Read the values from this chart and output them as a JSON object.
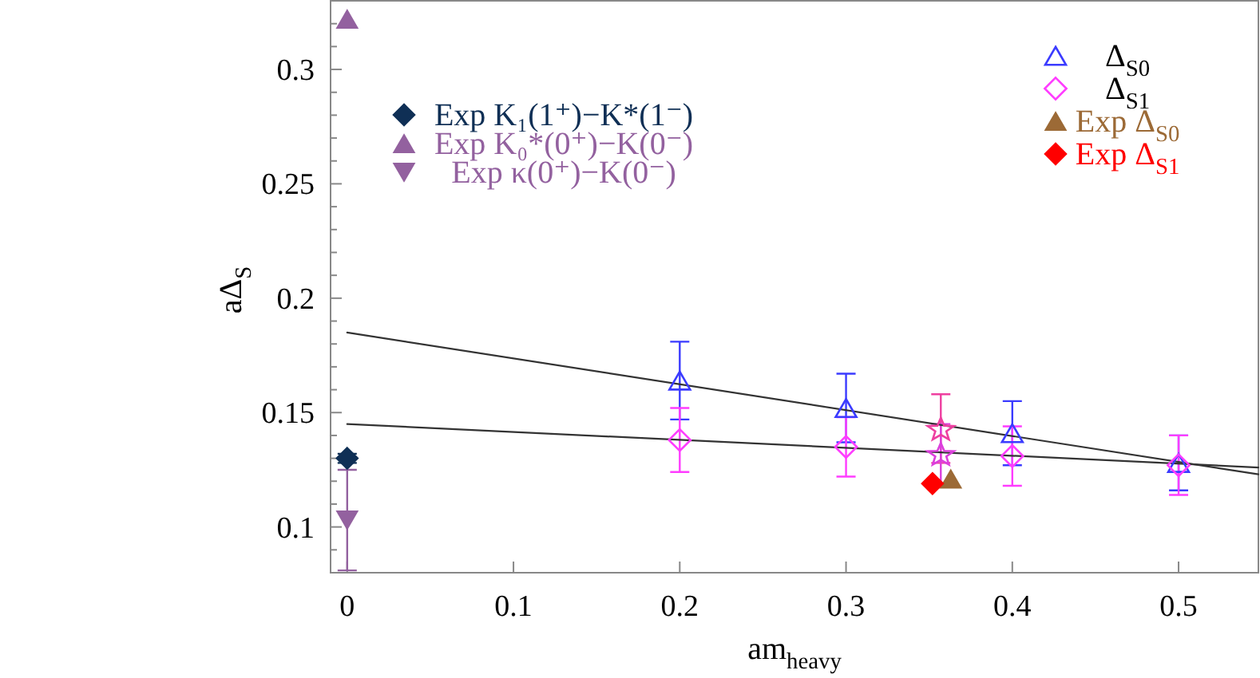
{
  "chart_data": {
    "type": "scatter",
    "xlabel": "am$_{heavy}$",
    "ylabel": "aΔ$_{S}$",
    "xlim": [
      -0.01,
      0.548
    ],
    "ylim": [
      0.08,
      0.33
    ],
    "xticks": [
      0,
      0.1,
      0.2,
      0.3,
      0.4,
      0.5
    ],
    "yticks": [
      {
        "value": 0.09,
        "label": null
      },
      0.1,
      {
        "value": 0.11,
        "label": null
      },
      {
        "value": 0.12,
        "label": null
      },
      {
        "value": 0.13,
        "label": null
      },
      {
        "value": 0.14,
        "label": null
      },
      0.15,
      {
        "value": 0.16,
        "label": null
      },
      {
        "value": 0.17,
        "label": null
      },
      {
        "value": 0.18,
        "label": null
      },
      {
        "value": 0.19,
        "label": null
      },
      0.2,
      {
        "value": 0.21,
        "label": null
      },
      {
        "value": 0.22,
        "label": null
      },
      {
        "value": 0.23,
        "label": null
      },
      {
        "value": 0.24,
        "label": null
      },
      0.25,
      {
        "value": 0.26,
        "label": null
      },
      {
        "value": 0.27,
        "label": null
      },
      {
        "value": 0.28,
        "label": null
      },
      {
        "value": 0.29,
        "label": null
      },
      0.3,
      {
        "value": 0.31,
        "label": null
      },
      {
        "value": 0.32,
        "label": null
      }
    ],
    "legend": "top right",
    "series": [
      {
        "type": "line",
        "color": "#333333",
        "x": [
          0,
          0.548
        ],
        "values": [
          0.185,
          0.123
        ]
      },
      {
        "type": "line",
        "color": "#333333",
        "x": [
          0,
          0.548
        ],
        "values": [
          0.145,
          0.126
        ]
      },
      {
        "name": "Δ$_{S0}$",
        "marker": "triangle-open",
        "color": "#3b3bff",
        "x": [
          0.2,
          0.3,
          0.4,
          0.5
        ],
        "values": [
          0.164,
          0.152,
          0.141,
          0.128
        ],
        "errors": [
          0.017,
          0.015,
          0.014,
          0.012
        ]
      },
      {
        "name": "Δ$_{S1}$",
        "marker": "diamond-open",
        "color": "#ff3cff",
        "x": [
          0.2,
          0.3,
          0.4,
          0.5
        ],
        "values": [
          0.138,
          0.135,
          0.131,
          0.127
        ],
        "errors": [
          0.014,
          0.013,
          0.013,
          0.013
        ]
      },
      {
        "name": "Exp Δ$_{S0}$",
        "marker": "triangle",
        "color": "#9c6a36",
        "x": [
          0.363
        ],
        "values": [
          0.121
        ]
      },
      {
        "name": "Exp Δ$_{S1}$",
        "marker": "diamond",
        "color": "#ff0000",
        "x": [
          0.352
        ],
        "values": [
          0.119
        ]
      },
      {
        "name": "Exp K₁(1⁺)−K*(1⁻)",
        "marker": "diamond",
        "color": "#0f2f55",
        "x": [
          0
        ],
        "values": [
          0.13
        ],
        "errors": [
          0.002
        ]
      },
      {
        "name": "Exp K₀*(0⁺)−K(0⁻)",
        "marker": "triangle",
        "color": "#93619f",
        "x": [
          0
        ],
        "values": [
          0.322
        ]
      },
      {
        "name": "Exp κ(0⁺)−K(0⁻)",
        "marker": "triangle-down",
        "color": "#93619f",
        "x": [
          0
        ],
        "values": [
          0.103
        ],
        "errors": [
          0.022
        ]
      },
      {
        "marker": "star-open",
        "color": "#ee3fa0",
        "x": [
          0.357
        ],
        "values": [
          0.143
        ],
        "errors": [
          0.015
        ]
      },
      {
        "marker": "star-open",
        "color": "#dc3fdc",
        "x": [
          0.357
        ],
        "values": [
          0.132
        ],
        "errors": [
          0.013
        ]
      }
    ]
  }
}
